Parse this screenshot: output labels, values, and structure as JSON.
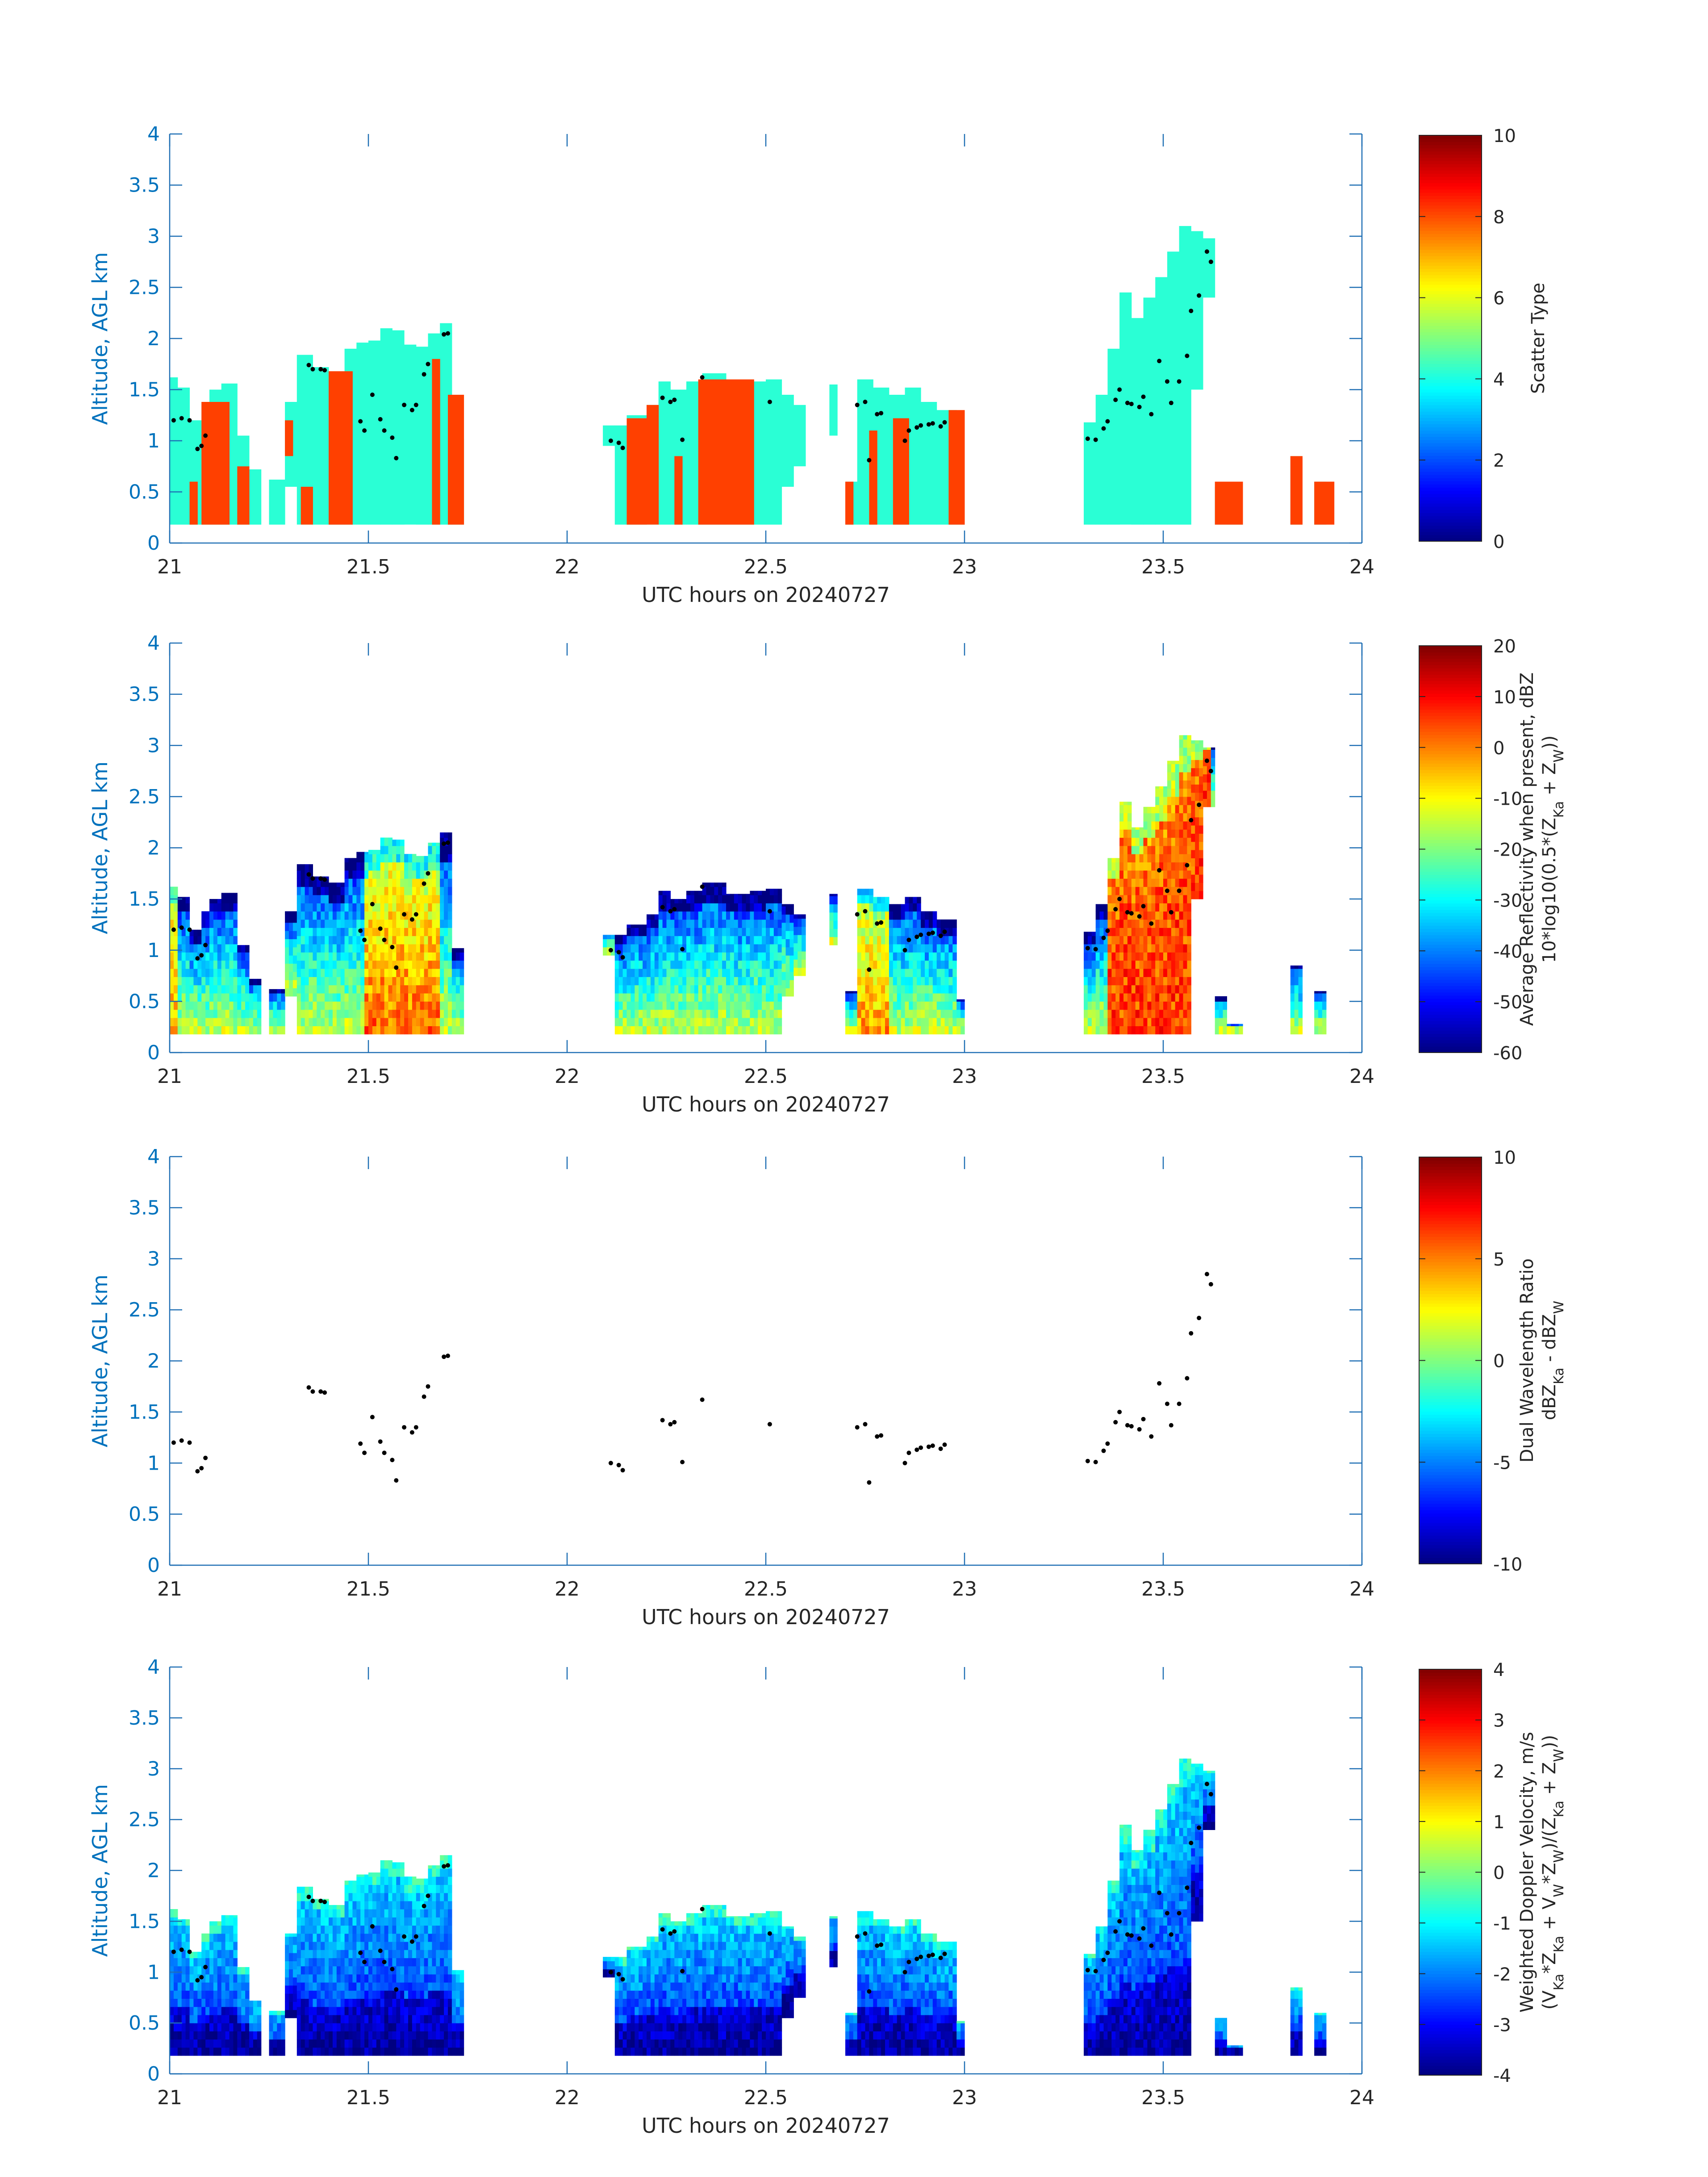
{
  "figure": {
    "colors": {
      "axis": "#1f6fb4",
      "tick_text": "#0072bd",
      "label_text": "#262626",
      "point": "#000000",
      "scatter_green": "#2affd5",
      "scatter_red": "#ff4000",
      "background": "#ffffff"
    }
  },
  "chart_data": [
    {
      "type": "heatmap",
      "title": "",
      "xlabel": "UTC hours on 20240727",
      "ylabel": "Altitude, AGL km",
      "xlim": [
        21,
        24
      ],
      "ylim": [
        0,
        4
      ],
      "x_ticks": [
        21,
        21.5,
        22,
        22.5,
        23,
        23.5,
        24
      ],
      "x_tick_labels": [
        "21",
        "21.5",
        "22",
        "22.5",
        "23",
        "23.5",
        "24"
      ],
      "y_ticks": [
        0,
        0.5,
        1,
        1.5,
        2,
        2.5,
        3,
        3.5,
        4
      ],
      "y_tick_labels": [
        "0",
        "0.5",
        "1",
        "1.5",
        "2",
        "2.5",
        "3",
        "3.5",
        "4"
      ],
      "colorbar": {
        "label_lines": [
          "Scatter Type"
        ],
        "limits": [
          0,
          10
        ],
        "ticks": [
          0,
          2,
          4,
          6,
          8,
          10
        ],
        "tick_labels": [
          "0",
          "2",
          "4",
          "6",
          "8",
          "10"
        ]
      },
      "field": "scatter_type",
      "categories": [
        {
          "name": "type 4",
          "value": 4,
          "color": "#2affd5"
        },
        {
          "name": "type 8",
          "value": 8,
          "color": "#ff4000"
        }
      ]
    },
    {
      "type": "heatmap",
      "title": "",
      "xlabel": "UTC hours on 20240727",
      "ylabel": "Altitude, AGL km",
      "xlim": [
        21,
        24
      ],
      "ylim": [
        0,
        4
      ],
      "x_ticks": [
        21,
        21.5,
        22,
        22.5,
        23,
        23.5,
        24
      ],
      "x_tick_labels": [
        "21",
        "21.5",
        "22",
        "22.5",
        "23",
        "23.5",
        "24"
      ],
      "y_ticks": [
        0,
        0.5,
        1,
        1.5,
        2,
        2.5,
        3,
        3.5,
        4
      ],
      "y_tick_labels": [
        "0",
        "0.5",
        "1",
        "1.5",
        "2",
        "2.5",
        "3",
        "3.5",
        "4"
      ],
      "colorbar": {
        "label_lines": [
          "Average Reflectivity when present, dBZ",
          "10*log10(0.5*(Z_Ka + Z_W))"
        ],
        "limits": [
          -60,
          20
        ],
        "ticks": [
          -60,
          -50,
          -40,
          -30,
          -20,
          -10,
          0,
          10,
          20
        ],
        "tick_labels": [
          "-60",
          "-50",
          "-40",
          "-30",
          "-20",
          "-10",
          "0",
          "10",
          "20"
        ]
      },
      "field": "reflectivity"
    },
    {
      "type": "heatmap",
      "title": "",
      "xlabel": "UTC hours on 20240727",
      "ylabel": "Altitude, AGL km",
      "xlim": [
        21,
        24
      ],
      "ylim": [
        0,
        4
      ],
      "x_ticks": [
        21,
        21.5,
        22,
        22.5,
        23,
        23.5,
        24
      ],
      "x_tick_labels": [
        "21",
        "21.5",
        "22",
        "22.5",
        "23",
        "23.5",
        "24"
      ],
      "y_ticks": [
        0,
        0.5,
        1,
        1.5,
        2,
        2.5,
        3,
        3.5,
        4
      ],
      "y_tick_labels": [
        "0",
        "0.5",
        "1",
        "1.5",
        "2",
        "2.5",
        "3",
        "3.5",
        "4"
      ],
      "colorbar": {
        "label_lines": [
          "Dual Wavelength Ratio",
          "dBZ_Ka - dBZ_W"
        ],
        "limits": [
          -10,
          10
        ],
        "ticks": [
          -10,
          -5,
          0,
          5,
          10
        ],
        "tick_labels": [
          "-10",
          "-5",
          "0",
          "5",
          "10"
        ]
      },
      "field": "none"
    },
    {
      "type": "heatmap",
      "title": "",
      "xlabel": "UTC hours on 20240727",
      "ylabel": "Altitude, AGL km",
      "xlim": [
        21,
        24
      ],
      "ylim": [
        0,
        4
      ],
      "x_ticks": [
        21,
        21.5,
        22,
        22.5,
        23,
        23.5,
        24
      ],
      "x_tick_labels": [
        "21",
        "21.5",
        "22",
        "22.5",
        "23",
        "23.5",
        "24"
      ],
      "y_ticks": [
        0,
        0.5,
        1,
        1.5,
        2,
        2.5,
        3,
        3.5,
        4
      ],
      "y_tick_labels": [
        "0",
        "0.5",
        "1",
        "1.5",
        "2",
        "2.5",
        "3",
        "3.5",
        "4"
      ],
      "colorbar": {
        "label_lines": [
          "Weighted Doppler Velocity, m/s",
          "(V_Ka*Z_Ka + V_W*Z_W)/(Z_Ka + Z_W))"
        ],
        "limits": [
          -4,
          4
        ],
        "ticks": [
          -4,
          -3,
          -2,
          -1,
          0,
          1,
          2,
          3,
          4
        ],
        "tick_labels": [
          "-4",
          "-3",
          "-2",
          "-1",
          "0",
          "1",
          "2",
          "3",
          "4"
        ]
      },
      "field": "velocity"
    }
  ],
  "shared_data": {
    "note": "Column cloud extents (UTC hour start, end, cloud-base km, cloud-top km) shared by the radar panels",
    "columns": [
      {
        "t0": 21.0,
        "t1": 21.02,
        "base": 0.18,
        "top": 1.62
      },
      {
        "t0": 21.02,
        "t1": 21.05,
        "base": 0.18,
        "top": 1.52
      },
      {
        "t0": 21.05,
        "t1": 21.08,
        "base": 0.18,
        "top": 1.2
      },
      {
        "t0": 21.08,
        "t1": 21.1,
        "base": 0.18,
        "top": 1.38
      },
      {
        "t0": 21.1,
        "t1": 21.13,
        "base": 0.18,
        "top": 1.5
      },
      {
        "t0": 21.13,
        "t1": 21.17,
        "base": 0.18,
        "top": 1.56
      },
      {
        "t0": 21.17,
        "t1": 21.2,
        "base": 0.18,
        "top": 1.05
      },
      {
        "t0": 21.2,
        "t1": 21.23,
        "base": 0.18,
        "top": 0.72
      },
      {
        "t0": 21.25,
        "t1": 21.29,
        "base": 0.18,
        "top": 0.62
      },
      {
        "t0": 21.29,
        "t1": 21.32,
        "base": 0.55,
        "top": 1.38
      },
      {
        "t0": 21.32,
        "t1": 21.36,
        "base": 0.18,
        "top": 1.84
      },
      {
        "t0": 21.36,
        "t1": 21.4,
        "base": 0.18,
        "top": 1.72
      },
      {
        "t0": 21.4,
        "t1": 21.44,
        "base": 0.18,
        "top": 1.66
      },
      {
        "t0": 21.44,
        "t1": 21.47,
        "base": 0.18,
        "top": 1.9
      },
      {
        "t0": 21.47,
        "t1": 21.5,
        "base": 0.18,
        "top": 1.96
      },
      {
        "t0": 21.5,
        "t1": 21.53,
        "base": 0.18,
        "top": 1.98
      },
      {
        "t0": 21.53,
        "t1": 21.56,
        "base": 0.18,
        "top": 2.1
      },
      {
        "t0": 21.56,
        "t1": 21.59,
        "base": 0.18,
        "top": 2.08
      },
      {
        "t0": 21.59,
        "t1": 21.62,
        "base": 0.18,
        "top": 1.94
      },
      {
        "t0": 21.62,
        "t1": 21.65,
        "base": 0.18,
        "top": 1.92
      },
      {
        "t0": 21.65,
        "t1": 21.68,
        "base": 0.18,
        "top": 2.05
      },
      {
        "t0": 21.68,
        "t1": 21.71,
        "base": 0.18,
        "top": 2.15
      },
      {
        "t0": 21.71,
        "t1": 21.74,
        "base": 0.18,
        "top": 1.02
      },
      {
        "t0": 22.09,
        "t1": 22.12,
        "base": 0.95,
        "top": 1.15
      },
      {
        "t0": 22.12,
        "t1": 22.15,
        "base": 0.18,
        "top": 1.15
      },
      {
        "t0": 22.15,
        "t1": 22.2,
        "base": 0.18,
        "top": 1.25
      },
      {
        "t0": 22.2,
        "t1": 22.23,
        "base": 0.18,
        "top": 1.35
      },
      {
        "t0": 22.23,
        "t1": 22.26,
        "base": 0.18,
        "top": 1.58
      },
      {
        "t0": 22.26,
        "t1": 22.3,
        "base": 0.18,
        "top": 1.5
      },
      {
        "t0": 22.3,
        "t1": 22.34,
        "base": 0.18,
        "top": 1.58
      },
      {
        "t0": 22.34,
        "t1": 22.4,
        "base": 0.18,
        "top": 1.66
      },
      {
        "t0": 22.4,
        "t1": 22.46,
        "base": 0.18,
        "top": 1.55
      },
      {
        "t0": 22.46,
        "t1": 22.5,
        "base": 0.18,
        "top": 1.58
      },
      {
        "t0": 22.5,
        "t1": 22.54,
        "base": 0.18,
        "top": 1.6
      },
      {
        "t0": 22.54,
        "t1": 22.57,
        "base": 0.55,
        "top": 1.45
      },
      {
        "t0": 22.57,
        "t1": 22.6,
        "base": 0.75,
        "top": 1.35
      },
      {
        "t0": 22.66,
        "t1": 22.68,
        "base": 1.05,
        "top": 1.55
      },
      {
        "t0": 22.7,
        "t1": 22.73,
        "base": 0.18,
        "top": 0.6
      },
      {
        "t0": 22.73,
        "t1": 22.77,
        "base": 0.18,
        "top": 1.6
      },
      {
        "t0": 22.77,
        "t1": 22.81,
        "base": 0.18,
        "top": 1.52
      },
      {
        "t0": 22.81,
        "t1": 22.85,
        "base": 0.18,
        "top": 1.45
      },
      {
        "t0": 22.85,
        "t1": 22.89,
        "base": 0.18,
        "top": 1.52
      },
      {
        "t0": 22.89,
        "t1": 22.93,
        "base": 0.18,
        "top": 1.38
      },
      {
        "t0": 22.93,
        "t1": 22.98,
        "base": 0.18,
        "top": 1.3
      },
      {
        "t0": 22.98,
        "t1": 23.0,
        "base": 0.18,
        "top": 0.52
      },
      {
        "t0": 23.3,
        "t1": 23.33,
        "base": 0.18,
        "top": 1.18
      },
      {
        "t0": 23.33,
        "t1": 23.36,
        "base": 0.18,
        "top": 1.45
      },
      {
        "t0": 23.36,
        "t1": 23.39,
        "base": 0.18,
        "top": 1.9
      },
      {
        "t0": 23.39,
        "t1": 23.42,
        "base": 0.18,
        "top": 2.45
      },
      {
        "t0": 23.42,
        "t1": 23.45,
        "base": 0.18,
        "top": 2.2
      },
      {
        "t0": 23.45,
        "t1": 23.48,
        "base": 0.18,
        "top": 2.4
      },
      {
        "t0": 23.48,
        "t1": 23.51,
        "base": 0.18,
        "top": 2.6
      },
      {
        "t0": 23.51,
        "t1": 23.54,
        "base": 0.18,
        "top": 2.85
      },
      {
        "t0": 23.54,
        "t1": 23.57,
        "base": 0.18,
        "top": 3.1
      },
      {
        "t0": 23.57,
        "t1": 23.6,
        "base": 1.5,
        "top": 3.05
      },
      {
        "t0": 23.6,
        "t1": 23.63,
        "base": 2.4,
        "top": 2.98
      },
      {
        "t0": 23.63,
        "t1": 23.66,
        "base": 0.18,
        "top": 0.55
      },
      {
        "t0": 23.66,
        "t1": 23.7,
        "base": 0.18,
        "top": 0.28
      },
      {
        "t0": 23.82,
        "t1": 23.85,
        "base": 0.18,
        "top": 0.85
      },
      {
        "t0": 23.85,
        "t1": 23.87,
        "base": 0.75,
        "top": 0.75
      },
      {
        "t0": 23.88,
        "t1": 23.91,
        "base": 0.18,
        "top": 0.6
      }
    ],
    "scatter_red_columns": [
      {
        "t0": 21.05,
        "t1": 21.07,
        "base": 0.18,
        "top": 0.6
      },
      {
        "t0": 21.08,
        "t1": 21.15,
        "base": 0.18,
        "top": 1.38
      },
      {
        "t0": 21.17,
        "t1": 21.2,
        "base": 0.18,
        "top": 0.75
      },
      {
        "t0": 21.29,
        "t1": 21.31,
        "base": 0.85,
        "top": 1.2
      },
      {
        "t0": 21.33,
        "t1": 21.36,
        "base": 0.18,
        "top": 0.55
      },
      {
        "t0": 21.4,
        "t1": 21.46,
        "base": 0.18,
        "top": 1.68
      },
      {
        "t0": 21.66,
        "t1": 21.68,
        "base": 0.18,
        "top": 1.8
      },
      {
        "t0": 21.7,
        "t1": 21.74,
        "base": 0.18,
        "top": 1.45
      },
      {
        "t0": 22.15,
        "t1": 22.2,
        "base": 0.18,
        "top": 1.22
      },
      {
        "t0": 22.2,
        "t1": 22.23,
        "base": 0.18,
        "top": 1.35
      },
      {
        "t0": 22.27,
        "t1": 22.29,
        "base": 0.18,
        "top": 0.85
      },
      {
        "t0": 22.33,
        "t1": 22.47,
        "base": 0.18,
        "top": 1.6
      },
      {
        "t0": 22.7,
        "t1": 22.72,
        "base": 0.18,
        "top": 0.6
      },
      {
        "t0": 22.76,
        "t1": 22.78,
        "base": 0.18,
        "top": 1.1
      },
      {
        "t0": 22.82,
        "t1": 22.86,
        "base": 0.18,
        "top": 1.22
      },
      {
        "t0": 22.96,
        "t1": 23.0,
        "base": 0.18,
        "top": 1.3
      },
      {
        "t0": 23.63,
        "t1": 23.7,
        "base": 0.18,
        "top": 0.6
      },
      {
        "t0": 23.82,
        "t1": 23.85,
        "base": 0.18,
        "top": 0.85
      },
      {
        "t0": 23.88,
        "t1": 23.93,
        "base": 0.18,
        "top": 0.6
      }
    ],
    "cloud_base_points": {
      "x": [
        21.01,
        21.03,
        21.05,
        21.07,
        21.08,
        21.09,
        21.35,
        21.36,
        21.38,
        21.39,
        21.48,
        21.49,
        21.51,
        21.53,
        21.54,
        21.56,
        21.57,
        21.59,
        21.61,
        21.62,
        21.64,
        21.65,
        21.69,
        21.7,
        22.11,
        22.13,
        22.14,
        22.24,
        22.26,
        22.27,
        22.29,
        22.34,
        22.51,
        22.73,
        22.75,
        22.76,
        22.78,
        22.79,
        22.85,
        22.86,
        22.88,
        22.89,
        22.91,
        22.92,
        22.94,
        22.95,
        23.31,
        23.33,
        23.35,
        23.36,
        23.38,
        23.39,
        23.41,
        23.42,
        23.44,
        23.45,
        23.47,
        23.49,
        23.51,
        23.52,
        23.54,
        23.56,
        23.57,
        23.59,
        23.61,
        23.62
      ],
      "y": [
        1.2,
        1.22,
        1.2,
        0.92,
        0.95,
        1.05,
        1.74,
        1.7,
        1.7,
        1.69,
        1.19,
        1.1,
        1.45,
        1.21,
        1.1,
        1.03,
        0.83,
        1.35,
        1.3,
        1.35,
        1.65,
        1.75,
        2.04,
        2.05,
        1.0,
        0.98,
        0.93,
        1.42,
        1.38,
        1.4,
        1.01,
        1.62,
        1.38,
        1.35,
        1.38,
        0.81,
        1.26,
        1.27,
        1.0,
        1.1,
        1.13,
        1.15,
        1.16,
        1.17,
        1.14,
        1.18,
        1.02,
        1.01,
        1.12,
        1.19,
        1.4,
        1.5,
        1.37,
        1.36,
        1.33,
        1.43,
        1.26,
        1.78,
        1.58,
        1.37,
        1.58,
        1.83,
        2.27,
        2.42,
        2.85,
        2.75
      ]
    }
  }
}
